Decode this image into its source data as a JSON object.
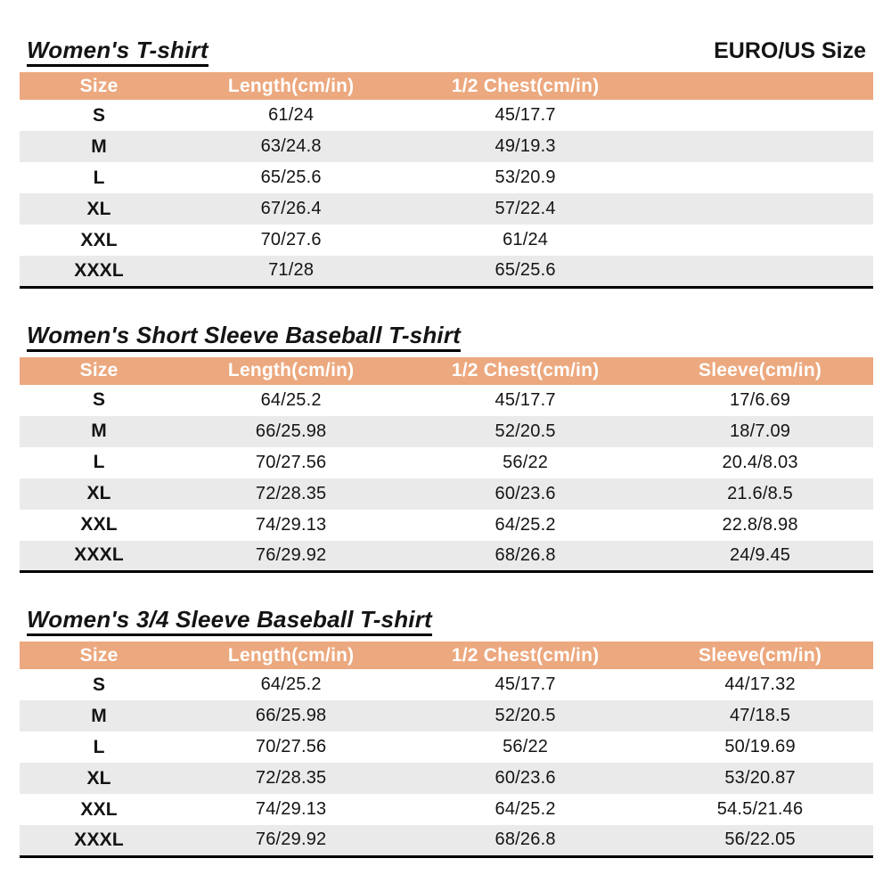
{
  "page": {
    "size_standard_label": "EURO/US Size"
  },
  "colors": {
    "header_bg": "#ECA87E",
    "row_alt": "#EAEAEA",
    "table_bottom_border": "#000000",
    "header_text": "#FFFFFF"
  },
  "tables": [
    {
      "title": "Women's T-shirt",
      "headers": [
        "Size",
        "Length(cm/in)",
        "1/2 Chest(cm/in)",
        ""
      ],
      "rows": [
        [
          "S",
          "61/24",
          "45/17.7",
          ""
        ],
        [
          "M",
          "63/24.8",
          "49/19.3",
          ""
        ],
        [
          "L",
          "65/25.6",
          "53/20.9",
          ""
        ],
        [
          "XL",
          "67/26.4",
          "57/22.4",
          ""
        ],
        [
          "XXL",
          "70/27.6",
          "61/24",
          ""
        ],
        [
          "XXXL",
          "71/28",
          "65/25.6",
          ""
        ]
      ]
    },
    {
      "title": "Women's Short Sleeve Baseball T-shirt",
      "headers": [
        "Size",
        "Length(cm/in)",
        "1/2 Chest(cm/in)",
        "Sleeve(cm/in)"
      ],
      "rows": [
        [
          "S",
          "64/25.2",
          "45/17.7",
          "17/6.69"
        ],
        [
          "M",
          "66/25.98",
          "52/20.5",
          "18/7.09"
        ],
        [
          "L",
          "70/27.56",
          "56/22",
          "20.4/8.03"
        ],
        [
          "XL",
          "72/28.35",
          "60/23.6",
          "21.6/8.5"
        ],
        [
          "XXL",
          "74/29.13",
          "64/25.2",
          "22.8/8.98"
        ],
        [
          "XXXL",
          "76/29.92",
          "68/26.8",
          "24/9.45"
        ]
      ]
    },
    {
      "title": "Women's 3/4 Sleeve Baseball T-shirt",
      "headers": [
        "Size",
        "Length(cm/in)",
        "1/2 Chest(cm/in)",
        "Sleeve(cm/in)"
      ],
      "rows": [
        [
          "S",
          "64/25.2",
          "45/17.7",
          "44/17.32"
        ],
        [
          "M",
          "66/25.98",
          "52/20.5",
          "47/18.5"
        ],
        [
          "L",
          "70/27.56",
          "56/22",
          "50/19.69"
        ],
        [
          "XL",
          "72/28.35",
          "60/23.6",
          "53/20.87"
        ],
        [
          "XXL",
          "74/29.13",
          "64/25.2",
          "54.5/21.46"
        ],
        [
          "XXXL",
          "76/29.92",
          "68/26.8",
          "56/22.05"
        ]
      ]
    }
  ]
}
